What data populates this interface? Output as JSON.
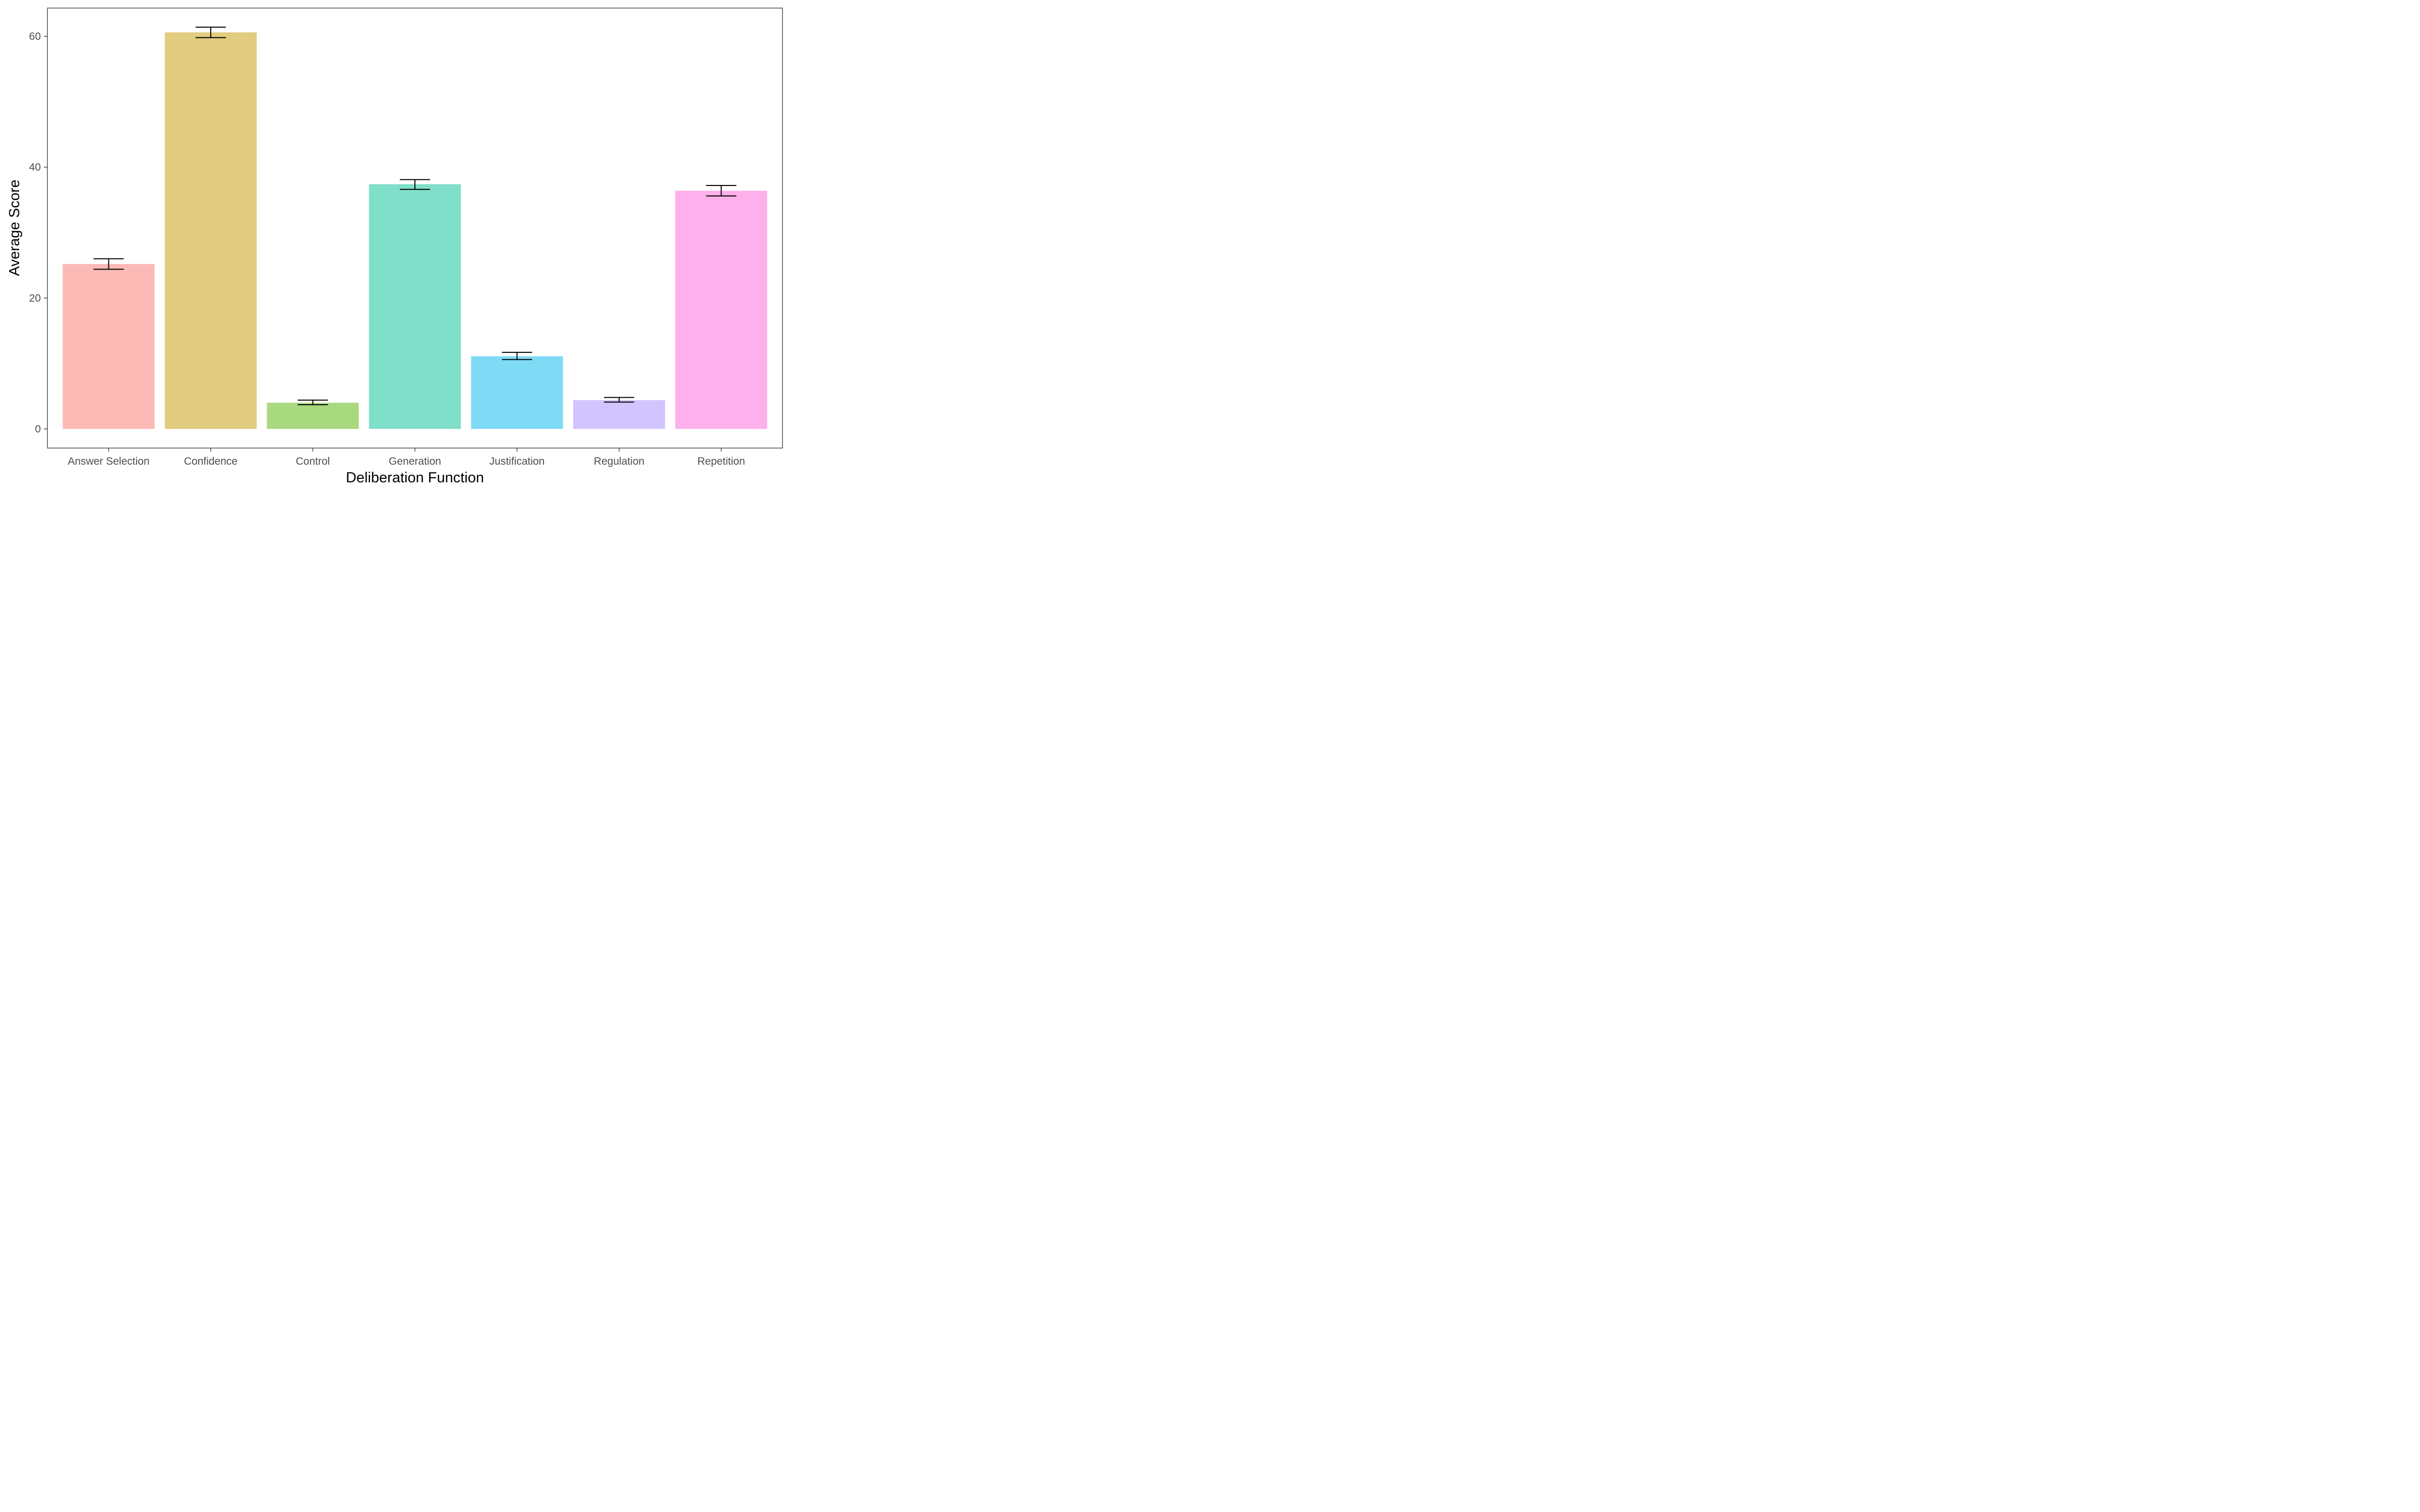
{
  "chart_data": {
    "type": "bar",
    "xlabel": "Deliberation Function",
    "ylabel": "Average Score",
    "categories": [
      "Answer Selection",
      "Confidence",
      "Control",
      "Generation",
      "Justification",
      "Regulation",
      "Repetition"
    ],
    "values": [
      25.2,
      60.6,
      4.0,
      37.4,
      11.1,
      4.4,
      36.4
    ],
    "error_low": [
      24.4,
      59.8,
      3.7,
      36.6,
      10.6,
      4.1,
      35.6
    ],
    "error_high": [
      26.0,
      61.4,
      4.4,
      38.1,
      11.7,
      4.8,
      37.2
    ],
    "colors": [
      "#F8766D",
      "#C49A00",
      "#53B400",
      "#00C094",
      "#00B6EB",
      "#A58AFF",
      "#FB61D7"
    ],
    "bar_opacity": 0.5,
    "ylim": [
      0,
      64
    ],
    "yticks": [
      0,
      20,
      40,
      60
    ],
    "grid": false,
    "legend": "none"
  }
}
